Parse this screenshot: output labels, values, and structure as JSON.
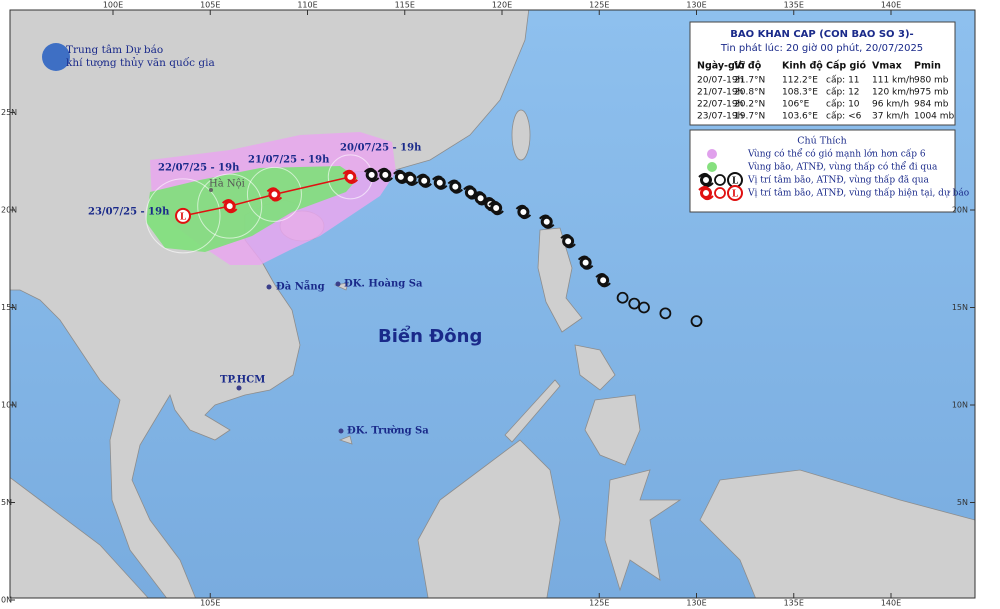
{
  "header": {
    "org_line1": "Trung tâm Dự báo",
    "org_line2": "khí tượng thủy văn quốc gia"
  },
  "bulletin": {
    "title": "BAO KHAN CAP (CON BAO SO 3)-",
    "issued": "Tin phát lúc: 20 giờ 00 phút, 20/07/2025",
    "columns": [
      "Ngày-giờ",
      "Vĩ độ",
      "Kinh độ",
      "Cấp gió",
      "Vmax",
      "Pmin"
    ],
    "rows": [
      [
        "20/07-19h",
        "21.7°N",
        "112.2°E",
        "cấp: 11",
        "111 km/h",
        "980 mb"
      ],
      [
        "21/07-19h",
        "20.8°N",
        "108.3°E",
        "cấp: 12",
        "120 km/h",
        "975 mb"
      ],
      [
        "22/07-19h",
        "20.2°N",
        "106°E",
        "cấp: 10",
        "96 km/h",
        "984 mb"
      ],
      [
        "23/07-19h",
        "19.7°N",
        "103.6°E",
        "cấp: <6",
        "37 km/h",
        "1004 mb"
      ]
    ]
  },
  "legend": {
    "title": "Chú Thích",
    "items": [
      "Vùng có thể có gió mạnh lớn hơn cấp 6",
      "Vùng bão, ATNĐ, vùng thấp có thể đi qua",
      "Vị trí tâm bão, ATNĐ, vùng thấp đã qua",
      "Vị trí tâm bão, ATNĐ, vùng thấp hiện tại, dự báo"
    ]
  },
  "forecast": [
    {
      "label": "20/07/25 - 19h",
      "lat": 21.7,
      "lon": 112.2,
      "symbol": "storm"
    },
    {
      "label": "21/07/25 - 19h",
      "lat": 20.8,
      "lon": 108.3,
      "symbol": "storm"
    },
    {
      "label": "22/07/25 - 19h",
      "lat": 20.2,
      "lon": 106,
      "symbol": "storm"
    },
    {
      "label": "23/07/25 - 19h",
      "lat": 19.7,
      "lon": 103.6,
      "symbol": "low"
    }
  ],
  "past_track": [
    {
      "lon": 113.3,
      "lat": 21.8,
      "symbol": "storm"
    },
    {
      "lon": 114.0,
      "lat": 21.8,
      "symbol": "storm"
    },
    {
      "lon": 114.8,
      "lat": 21.7,
      "symbol": "storm"
    },
    {
      "lon": 115.3,
      "lat": 21.6,
      "symbol": "storm"
    },
    {
      "lon": 116.0,
      "lat": 21.5,
      "symbol": "storm"
    },
    {
      "lon": 116.8,
      "lat": 21.4,
      "symbol": "storm"
    },
    {
      "lon": 117.6,
      "lat": 21.2,
      "symbol": "storm"
    },
    {
      "lon": 118.4,
      "lat": 20.9,
      "symbol": "storm"
    },
    {
      "lon": 118.9,
      "lat": 20.6,
      "symbol": "storm"
    },
    {
      "lon": 119.4,
      "lat": 20.3,
      "symbol": "storm"
    },
    {
      "lon": 119.7,
      "lat": 20.1,
      "symbol": "storm"
    },
    {
      "lon": 121.1,
      "lat": 19.9,
      "symbol": "storm"
    },
    {
      "lon": 122.3,
      "lat": 19.4,
      "symbol": "storm"
    },
    {
      "lon": 123.4,
      "lat": 18.4,
      "symbol": "storm"
    },
    {
      "lon": 124.3,
      "lat": 17.3,
      "symbol": "storm"
    },
    {
      "lon": 125.2,
      "lat": 16.4,
      "symbol": "storm"
    },
    {
      "lon": 126.2,
      "lat": 15.5,
      "symbol": "depression"
    },
    {
      "lon": 126.8,
      "lat": 15.2,
      "symbol": "depression"
    },
    {
      "lon": 127.3,
      "lat": 15.0,
      "symbol": "depression"
    },
    {
      "lon": 128.4,
      "lat": 14.7,
      "symbol": "depression"
    },
    {
      "lon": 130.0,
      "lat": 14.3,
      "symbol": "depression"
    }
  ],
  "places": {
    "hanoi": "Hà Nội",
    "danang": "Đà Nẵng",
    "hoangsa": "ĐK. Hoàng Sa",
    "truongsa": "ĐK. Trường Sa",
    "hcm": "TP.HCM",
    "sea": "Biển Đông"
  },
  "lon_ticks_top": [
    {
      "value": 100,
      "label": "100E"
    },
    {
      "value": 105,
      "label": "105E"
    },
    {
      "value": 110,
      "label": "110E"
    },
    {
      "value": 115,
      "label": "115E"
    },
    {
      "value": 120,
      "label": "120E"
    },
    {
      "value": 125,
      "label": "125E"
    },
    {
      "value": 130,
      "label": "130E"
    },
    {
      "value": 135,
      "label": "135E"
    },
    {
      "value": 140,
      "label": "140E"
    }
  ],
  "lon_ticks_bottom": [
    {
      "value": 105,
      "label": "105E"
    },
    {
      "value": 125,
      "label": "125E"
    },
    {
      "value": 130,
      "label": "130E"
    },
    {
      "value": 135,
      "label": "135E"
    },
    {
      "value": 140,
      "label": "140E"
    }
  ],
  "lat_ticks_left": [
    {
      "value": 25,
      "label": "25N"
    },
    {
      "value": 20,
      "label": "20N"
    },
    {
      "value": 15,
      "label": "15N"
    },
    {
      "value": 10,
      "label": "10N"
    },
    {
      "value": 5,
      "label": "5N"
    },
    {
      "value": 0,
      "label": "0N"
    }
  ],
  "lat_ticks_right": [
    {
      "value": 20,
      "label": "20N"
    },
    {
      "value": 15,
      "label": "15N"
    },
    {
      "value": 10,
      "label": "10N"
    },
    {
      "value": 5,
      "label": "5N"
    }
  ]
}
